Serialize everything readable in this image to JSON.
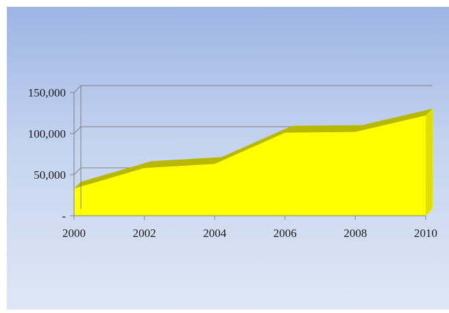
{
  "chart_data": {
    "type": "area",
    "style": "3d",
    "x": [
      2000,
      2002,
      2004,
      2006,
      2008,
      2010
    ],
    "values": [
      33000,
      58000,
      63000,
      101000,
      102000,
      122000
    ],
    "y_ticks": [
      {
        "value": 0,
        "label": "-"
      },
      {
        "value": 50000,
        "label": "50,000"
      },
      {
        "value": 100000,
        "label": "100,000"
      },
      {
        "value": 150000,
        "label": "150,000"
      }
    ],
    "x_ticks": [
      "2000",
      "2002",
      "2004",
      "2006",
      "2008",
      "2010"
    ],
    "ylim": [
      0,
      150000
    ],
    "xlim": [
      2000,
      2010
    ],
    "grid": true,
    "legend": "none",
    "title": "",
    "xlabel": "",
    "ylabel": "",
    "colors": {
      "fill": "#ffff00",
      "top": "#b8b800",
      "gridline": "#808080",
      "axis": "#808080"
    }
  }
}
